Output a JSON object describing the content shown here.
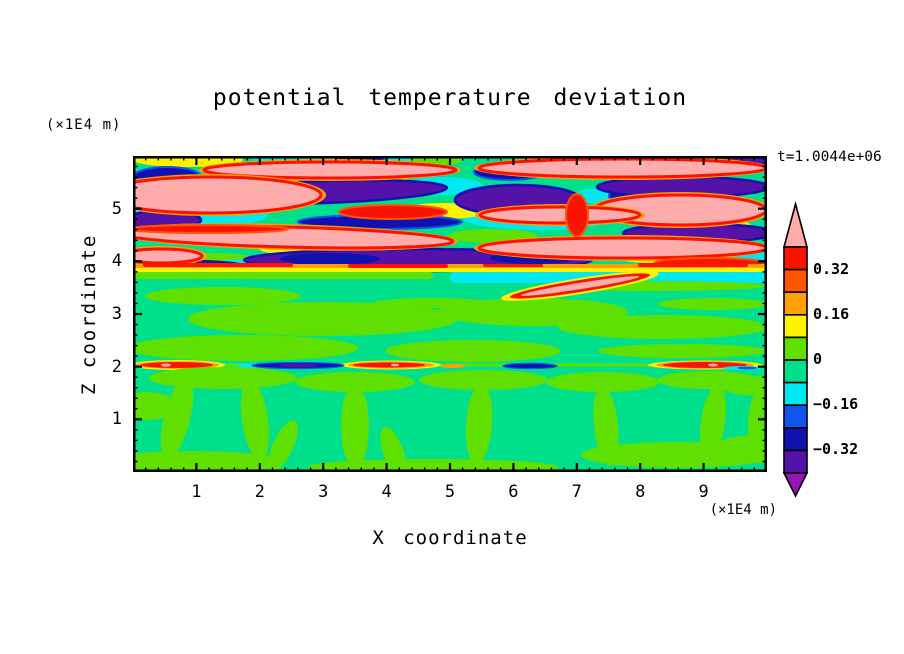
{
  "title": "potential temperature deviation",
  "annotations": {
    "y_axis_units": "(×1E4 m)",
    "x_axis_units": "(×1E4 m)",
    "time_label": "t=1.0044e+06"
  },
  "axes": {
    "x": {
      "label": "X coordinate",
      "min": 0,
      "max": 10,
      "major_ticks": [
        1,
        2,
        3,
        4,
        5,
        6,
        7,
        8,
        9
      ],
      "minor_tick_interval": 0.2
    },
    "z": {
      "label": "Z coordinate",
      "min": 0,
      "max": 6,
      "major_ticks": [
        1,
        2,
        3,
        4,
        5
      ],
      "minor_tick_interval": 0.2
    }
  },
  "colorbar": {
    "labels": [
      "0.32",
      "0.16",
      "0",
      "−0.16",
      "−0.32"
    ],
    "label_values": [
      0.32,
      0.16,
      0,
      -0.16,
      -0.32
    ],
    "levels": [
      -0.4,
      -0.32,
      -0.24,
      -0.16,
      -0.08,
      0,
      0.08,
      0.16,
      0.24,
      0.32,
      0.4
    ],
    "segment_colors_top_to_bottom": [
      "#FA1400",
      "#FF5500",
      "#FFA000",
      "#FFF200",
      "#5FE000",
      "#00E08C",
      "#00E8F0",
      "#0F55F0",
      "#1111B1",
      "#5512A8"
    ],
    "over_color": "#FFACAC",
    "under_color": "#9914B8"
  },
  "chart_data": {
    "type": "heatmap",
    "subtype": "filled-contour",
    "title": "potential temperature deviation",
    "xlabel": "X coordinate",
    "ylabel": "Z coordinate",
    "x_units": "(×1E4 m)",
    "z_units": "(×1E4 m)",
    "time": "t=1.0044e+06",
    "xlim": [
      0,
      10
    ],
    "zlim": [
      0,
      6
    ],
    "contour_interval": 0.08,
    "levels": [
      -0.4,
      -0.32,
      -0.24,
      -0.16,
      -0.08,
      0,
      0.08,
      0.16,
      0.24,
      0.32,
      0.4
    ],
    "palette": {
      "over_0.4": "#FFACAC",
      "0.32_0.4": "#FA1400",
      "0.24_0.32": "#FF5500",
      "0.16_0.24": "#FFA000",
      "0.08_0.16": "#FFF200",
      "0_0.08": "#5FE000",
      "-0.08_0": "#00E08C",
      "-0.16_-0.08": "#00E8F0",
      "-0.24_-0.16": "#0F55F0",
      "-0.32_-0.24": "#1111B1",
      "-0.4_-0.32": "#5512A8",
      "under_-0.4": "#9914B8"
    },
    "approx_grid": {
      "x_centers": [
        0.5,
        1.5,
        2.5,
        3.5,
        4.5,
        5.5,
        6.5,
        7.5,
        8.5,
        9.5
      ],
      "z_rows_top_to_bottom": [
        5.5,
        4.5,
        3.5,
        2.5,
        1.5,
        0.5
      ],
      "values": [
        [
          0.44,
          -0.44,
          0.2,
          -0.44,
          0.44,
          -0.2,
          0.44,
          -0.44,
          0.44,
          -0.44
        ],
        [
          -0.36,
          0.44,
          0.44,
          -0.44,
          0.36,
          0.44,
          -0.44,
          0.44,
          -0.36,
          0.44
        ],
        [
          -0.04,
          0.04,
          -0.04,
          0.04,
          -0.04,
          0.36,
          0.04,
          -0.04,
          0.04,
          -0.04
        ],
        [
          0.04,
          -0.04,
          0.04,
          0.04,
          -0.04,
          0.04,
          -0.04,
          0.04,
          0.04,
          -0.04
        ],
        [
          0.04,
          0.04,
          -0.04,
          0.04,
          -0.04,
          0.04,
          -0.04,
          0.04,
          -0.04,
          0.04
        ],
        [
          -0.04,
          0.04,
          0.04,
          -0.04,
          0.04,
          -0.04,
          0.04,
          -0.04,
          0.04,
          0.04
        ]
      ]
    },
    "features": [
      "turbulent wavy layer with alternating ±0.4 streaks (pink/purple/red/navy) between z≈4 and z≈6",
      "sharp warm (red/orange/yellow) line along the base of the turbulent layer near z≈4",
      "weak anomalies |θ'|<0.08 (greens) between z≈2 and z≈4",
      "thin slanted warm filament near x≈5.4–6.4, z≈3.2–3.5",
      "thin inversion line at z≈2 with alternating warm (red) and cold (navy/cyan) patches",
      "slightly warm convective plumes (0–0.08) rising from the surface below z≈2"
    ],
    "legend_position": "right-colorbar",
    "grid": false
  }
}
